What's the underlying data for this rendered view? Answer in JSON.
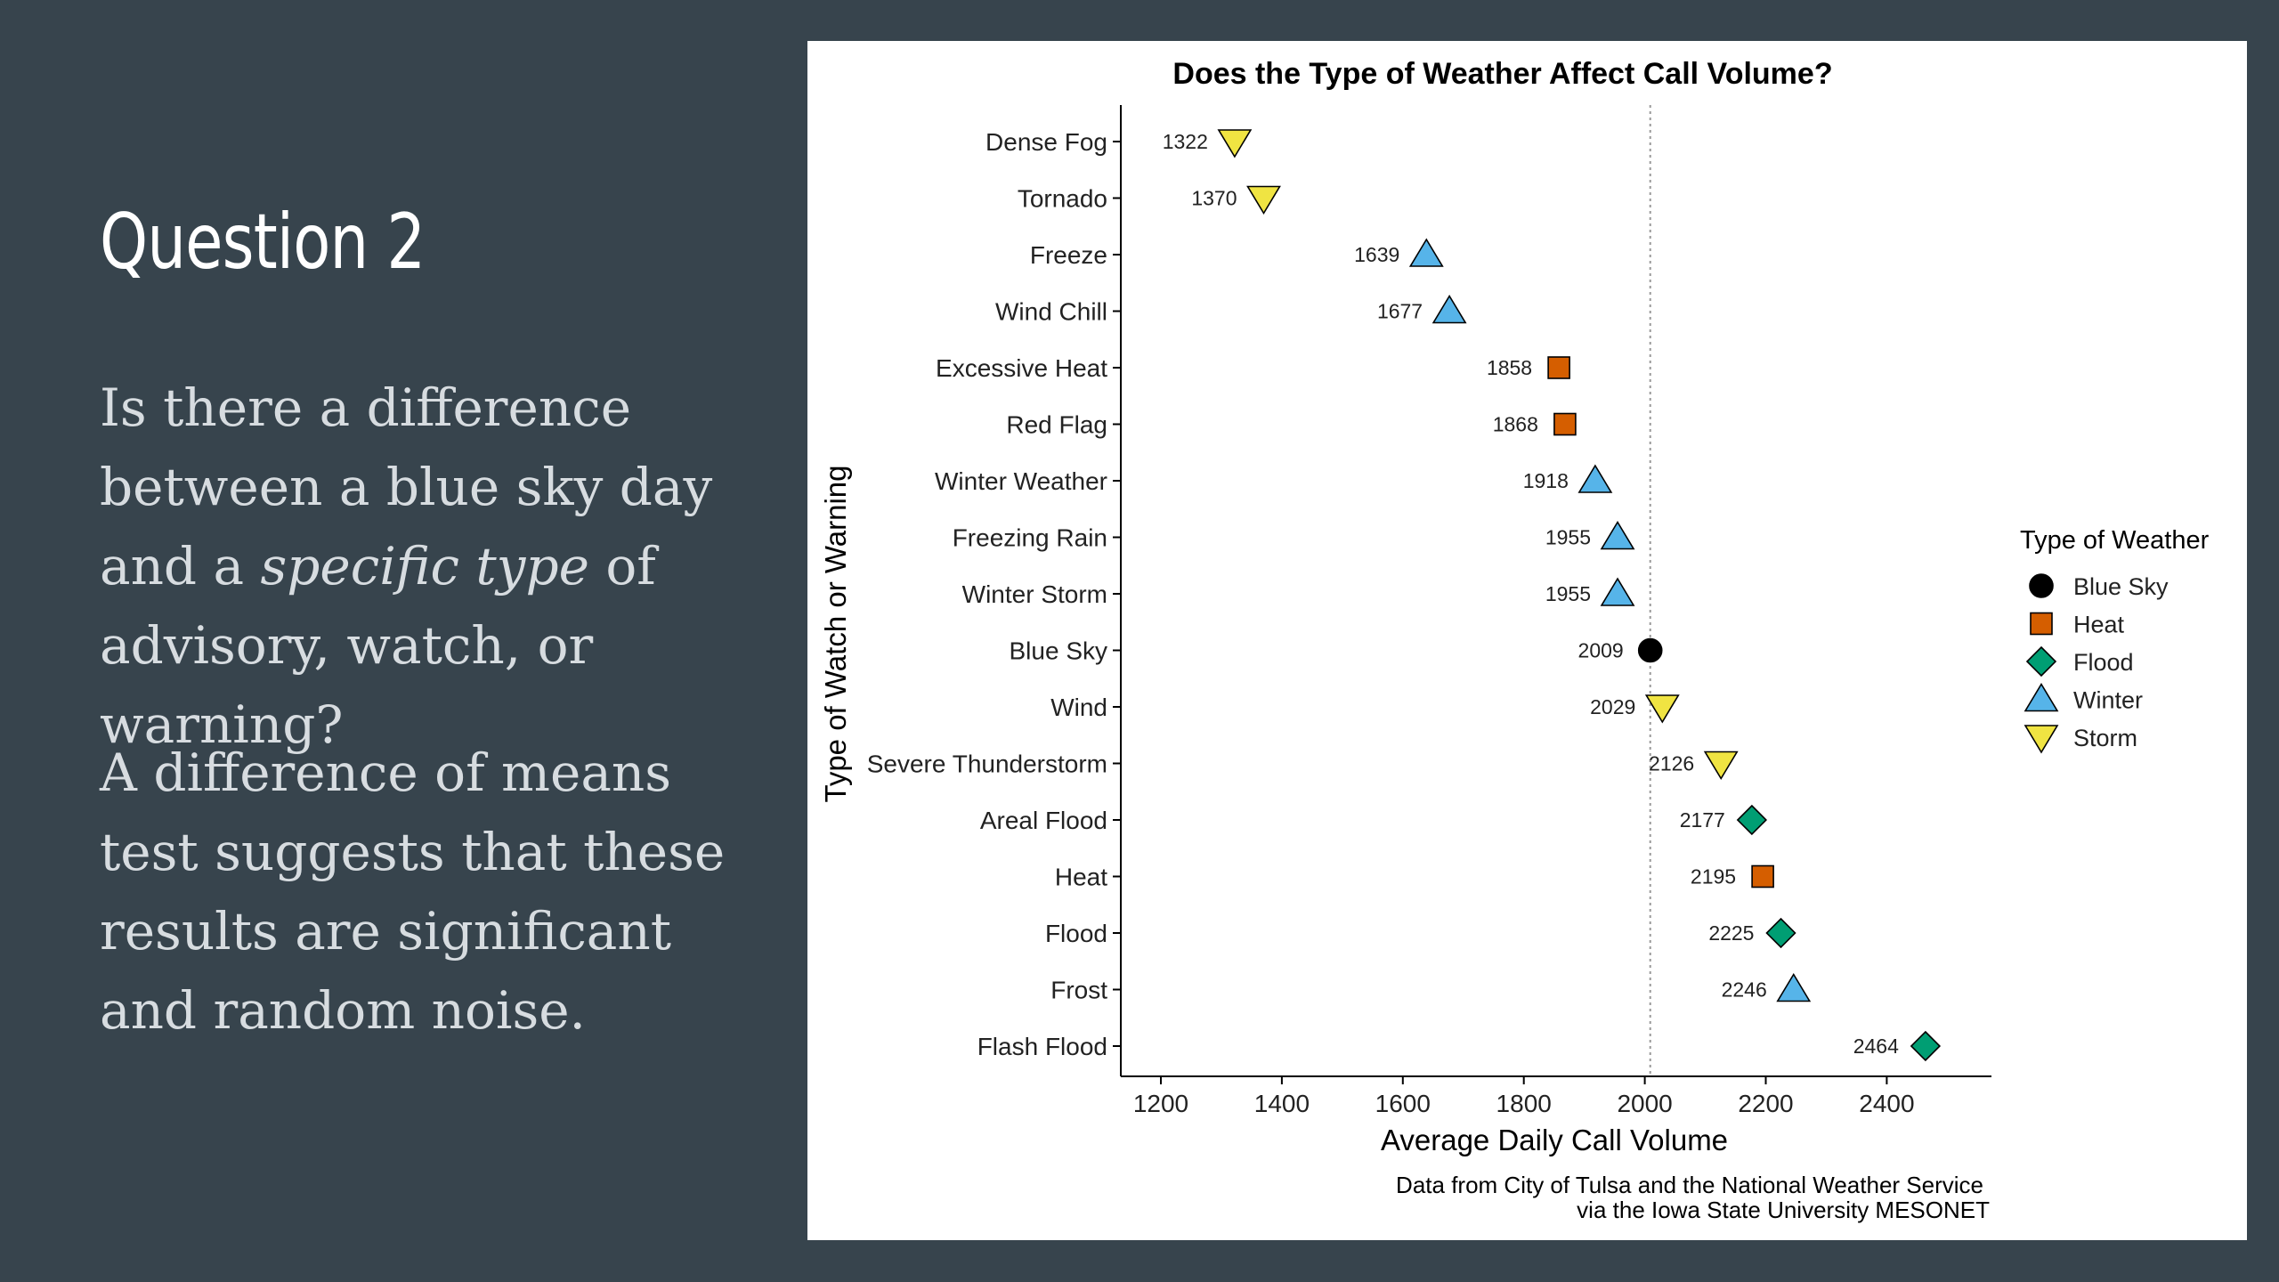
{
  "slide": {
    "title": "Question 2",
    "para1_part1": "Is there a difference between a blue sky day and a ",
    "para1_em": "specific type",
    "para1_part2": " of advisory, watch, or warning?",
    "para2": "A difference of means test suggests  that these results are significant and random noise.",
    "colors": {
      "background": "#37444d",
      "title": "#ffffff",
      "body_text": "#d7dce0"
    }
  },
  "chart_data": {
    "type": "scatter",
    "title": "Does the Type of Weather Affect Call Volume?",
    "xlabel": "Average Daily Call Volume",
    "ylabel": "Type of Watch or Warning",
    "xlim": [
      1140,
      2560
    ],
    "xticks": [
      1200,
      1400,
      1600,
      1800,
      2000,
      2200,
      2400
    ],
    "reference_line": {
      "x": 2009,
      "style": "dotted"
    },
    "grid": false,
    "legend_position": "right",
    "legend_title": "Type of Weather",
    "legend": [
      {
        "name": "Blue Sky",
        "shape": "circle",
        "color": "#000000"
      },
      {
        "name": "Heat",
        "shape": "square",
        "color": "#d55e00"
      },
      {
        "name": "Flood",
        "shape": "diamond",
        "color": "#009e73"
      },
      {
        "name": "Winter",
        "shape": "triangle-up",
        "color": "#56b4e9"
      },
      {
        "name": "Storm",
        "shape": "triangle-down",
        "color": "#f0e442"
      }
    ],
    "points": [
      {
        "label": "Dense Fog",
        "value": 1322,
        "group": "Storm"
      },
      {
        "label": "Tornado",
        "value": 1370,
        "group": "Storm"
      },
      {
        "label": "Freeze",
        "value": 1639,
        "group": "Winter"
      },
      {
        "label": "Wind Chill",
        "value": 1677,
        "group": "Winter"
      },
      {
        "label": "Excessive Heat",
        "value": 1858,
        "group": "Heat"
      },
      {
        "label": "Red Flag",
        "value": 1868,
        "group": "Heat"
      },
      {
        "label": "Winter Weather",
        "value": 1918,
        "group": "Winter"
      },
      {
        "label": "Freezing Rain",
        "value": 1955,
        "group": "Winter"
      },
      {
        "label": "Winter Storm",
        "value": 1955,
        "group": "Winter"
      },
      {
        "label": "Blue Sky",
        "value": 2009,
        "group": "Blue Sky"
      },
      {
        "label": "Wind",
        "value": 2029,
        "group": "Storm"
      },
      {
        "label": "Severe Thunderstorm",
        "value": 2126,
        "group": "Storm"
      },
      {
        "label": "Areal Flood",
        "value": 2177,
        "group": "Flood"
      },
      {
        "label": "Heat",
        "value": 2195,
        "group": "Heat"
      },
      {
        "label": "Flood",
        "value": 2225,
        "group": "Flood"
      },
      {
        "label": "Frost",
        "value": 2246,
        "group": "Winter"
      },
      {
        "label": "Flash Flood",
        "value": 2464,
        "group": "Flood"
      }
    ],
    "caption_line1": "Data from City of Tulsa and the National Weather Service",
    "caption_line2": "via the Iowa State University MESONET"
  }
}
